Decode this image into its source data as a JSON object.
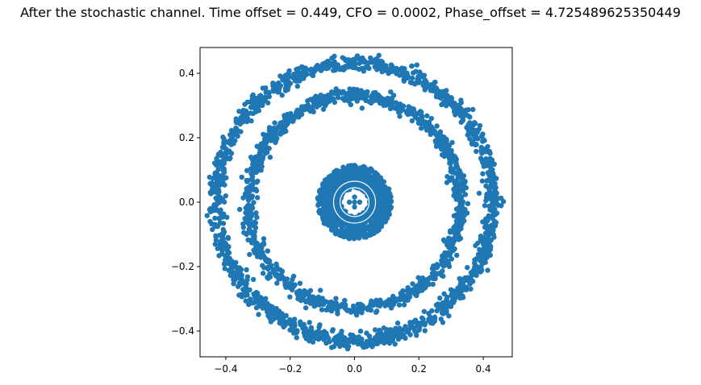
{
  "chart_data": {
    "type": "scatter",
    "title": "After the stochastic channel. Time offset = 0.449, CFO = 0.0002, Phase_offset = 4.725489625350449",
    "xlabel": "",
    "ylabel": "",
    "xlim": [
      -0.48,
      0.49
    ],
    "ylim": [
      -0.48,
      0.48
    ],
    "xticks": [
      -0.4,
      -0.2,
      0.0,
      0.2,
      0.4
    ],
    "yticks": [
      -0.4,
      -0.2,
      0.0,
      0.2,
      0.4
    ],
    "xtick_labels": [
      "−0.4",
      "−0.2",
      "0.0",
      "0.2",
      "0.4"
    ],
    "ytick_labels": [
      "−0.4",
      "−0.2",
      "0.0",
      "0.2",
      "0.4"
    ],
    "grid": false,
    "marker_color": "#1f77b4",
    "series": [
      {
        "shape": "ring",
        "radius": 0.43,
        "spread": 0.012,
        "count": 1400
      },
      {
        "shape": "ring",
        "radius": 0.33,
        "spread": 0.011,
        "count": 1100
      },
      {
        "shape": "disk",
        "inner_radius": 0.06,
        "outer_radius": 0.115,
        "count": 900
      },
      {
        "shape": "ring",
        "radius": 0.05,
        "spread": 0.004,
        "count": 200
      },
      {
        "shape": "cluster",
        "center": [
          0.0,
          0.0
        ],
        "points": [
          [
            0.0,
            0.0
          ],
          [
            0.0,
            -0.015
          ],
          [
            0.016,
            0.0
          ],
          [
            -0.016,
            0.0
          ],
          [
            0.0,
            0.016
          ]
        ]
      }
    ]
  }
}
